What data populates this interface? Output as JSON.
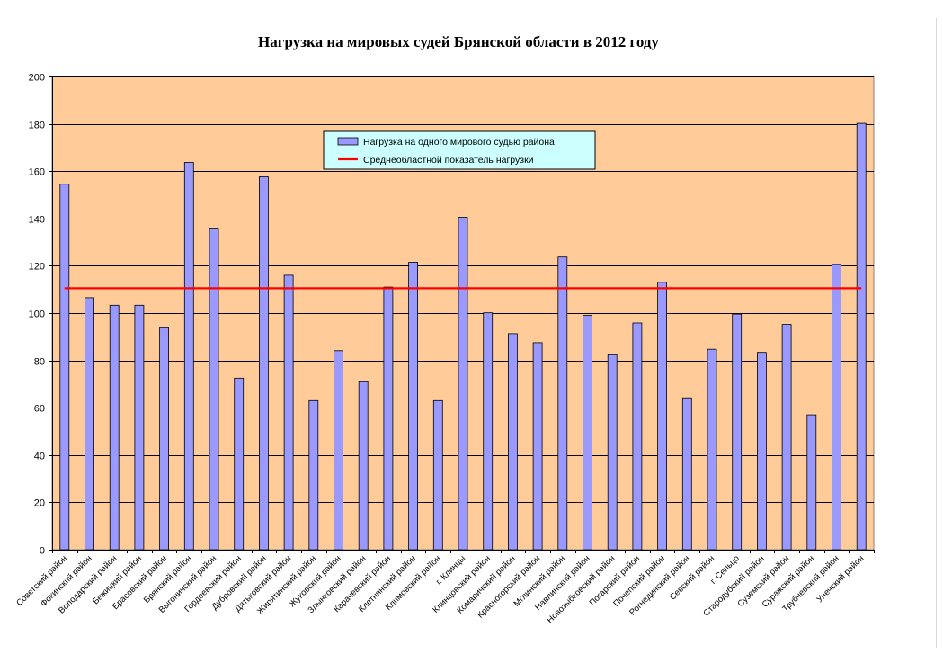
{
  "chart_data": {
    "type": "bar",
    "title": "Нагрузка на мировых судей Брянской области в 2012 году",
    "xlabel": "",
    "ylabel": "",
    "ylim": [
      0,
      200
    ],
    "yticks": [
      0,
      20,
      40,
      60,
      80,
      100,
      120,
      140,
      160,
      180,
      200
    ],
    "grid": true,
    "legend_position": "top-center",
    "categories": [
      "Советский район",
      "Фокинский район",
      "Володарский район",
      "Бежицкий район",
      "Брасовский район",
      "Брянский район",
      "Выгоничский район",
      "Гордеевский район",
      "Дубровский район",
      "Дятьковский район",
      "Жирятинский район",
      "Жуковский район",
      "Злынковский район",
      "Карачевский район",
      "Клетнянский район",
      "Климовский район",
      "г. Клинцы",
      "Клинцовский район",
      "Комаричский район",
      "Красногорский район",
      "Мглинский район",
      "Навлинский район",
      "Новозыбковский район",
      "Погарский район",
      "Почепский район",
      "Рогнединский район",
      "Севский район",
      "г. Сельцо",
      "Стародубский район",
      "Суземский район",
      "Суражский район",
      "Трубчевский район",
      "Унечский район"
    ],
    "series": [
      {
        "name": "Нагрузка на одного мирового судью района",
        "kind": "bar",
        "color": "#9999ff",
        "values": [
          154.5,
          106.5,
          103.3,
          103.3,
          93.8,
          163.7,
          135.5,
          72.5,
          157.6,
          116,
          63,
          84.1,
          71,
          111,
          121.5,
          63,
          140.5,
          100.1,
          91.3,
          87.5,
          123.7,
          99,
          82.4,
          95.8,
          113,
          64.2,
          84.7,
          99.6,
          83.4,
          95.2,
          57,
          120.5,
          180.2
        ]
      },
      {
        "name": "Среднеобластной показатель нагрузки",
        "kind": "line",
        "color": "#ff0000",
        "values": [
          110.5,
          110.5,
          110.5,
          110.5,
          110.5,
          110.5,
          110.5,
          110.5,
          110.5,
          110.5,
          110.5,
          110.5,
          110.5,
          110.5,
          110.5,
          110.5,
          110.5,
          110.5,
          110.5,
          110.5,
          110.5,
          110.5,
          110.5,
          110.5,
          110.5,
          110.5,
          110.5,
          110.5,
          110.5,
          110.5,
          110.5,
          110.5,
          110.5
        ]
      }
    ],
    "colors": {
      "plot_background": "#ffcc99",
      "legend_background": "#ccffff",
      "bar_border": "#000000",
      "grid": "#000000"
    }
  }
}
